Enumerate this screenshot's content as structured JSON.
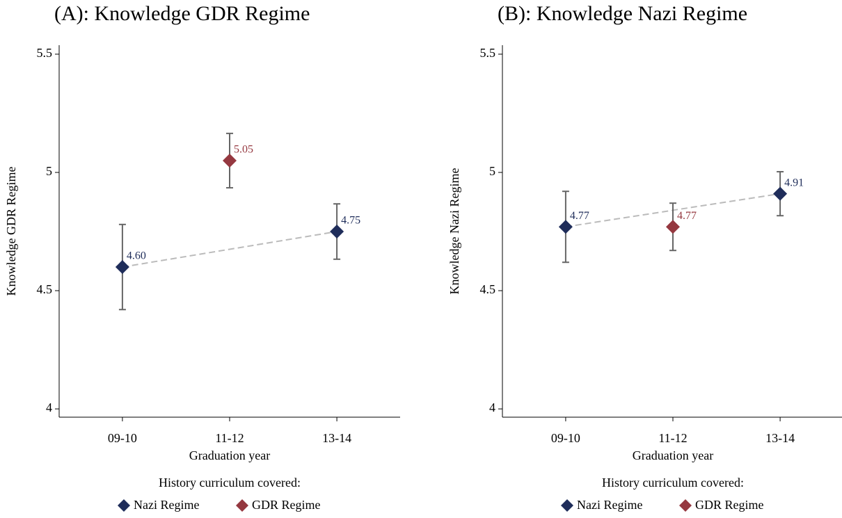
{
  "chart_data": [
    {
      "type": "scatter",
      "title": "(A): Knowledge GDR Regime",
      "x_label": "Graduation year",
      "y_label": "Knowledge GDR Regime",
      "categories": [
        "09-10",
        "11-12",
        "13-14"
      ],
      "series": [
        {
          "name": "Nazi Regime",
          "color": "#1f2d5a",
          "values": [
            4.6,
            null,
            4.75
          ],
          "value_labels": [
            "4.60",
            null,
            "4.75"
          ],
          "errors": [
            0.18,
            null,
            0.117
          ]
        },
        {
          "name": "GDR Regime",
          "color": "#953840",
          "values": [
            null,
            5.05,
            null
          ],
          "errors": [
            null,
            0.115,
            null
          ]
        }
      ],
      "ylim": [
        3.965,
        5.538
      ],
      "yticks": [
        4,
        4.5,
        5,
        5.5
      ],
      "legend": "bottom",
      "legend_title": "History curriculum covered:",
      "connect_series": "Nazi Regime"
    },
    {
      "type": "scatter",
      "title": "(B): Knowledge Nazi Regime",
      "x_label": "Graduation year",
      "y_label": "Knowledge Nazi Regime",
      "categories": [
        "09-10",
        "11-12",
        "13-14"
      ],
      "series": [
        {
          "name": "Nazi Regime",
          "color": "#1f2d5a",
          "values": [
            4.77,
            null,
            4.91
          ],
          "errors": [
            0.15,
            null,
            0.093
          ]
        },
        {
          "name": "GDR Regime",
          "color": "#953840",
          "values": [
            null,
            4.77,
            null
          ],
          "errors": [
            null,
            0.1,
            null
          ]
        }
      ],
      "ylim": [
        3.965,
        5.538
      ],
      "yticks": [
        4,
        4.5,
        5,
        5.5
      ],
      "legend": "bottom",
      "legend_title": "History curriculum covered:",
      "connect_series": "Nazi Regime"
    }
  ]
}
